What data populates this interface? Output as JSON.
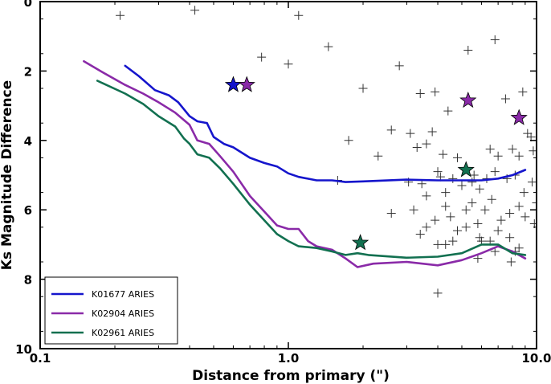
{
  "chart_data": {
    "type": "line",
    "title": "",
    "xlabel": "Distance from primary (\")",
    "ylabel": "Ks Magnitude Difference",
    "xscale": "log",
    "xlim": [
      0.1,
      10.0
    ],
    "ylim": [
      10,
      0
    ],
    "y_inverted": true,
    "grid": false,
    "legend_position": "bottom-left",
    "x_tick_labels": [
      "0.1",
      "1.0",
      "10.0"
    ],
    "x_tick_values": [
      0.1,
      1.0,
      10.0
    ],
    "y_tick_labels": [
      "0",
      "2",
      "4",
      "6",
      "8",
      "10"
    ],
    "y_tick_values": [
      0,
      2,
      4,
      6,
      8,
      10
    ],
    "series": [
      {
        "name": "K01677 ARIES",
        "color": "#1515cc",
        "x": [
          0.22,
          0.25,
          0.29,
          0.33,
          0.36,
          0.4,
          0.43,
          0.47,
          0.5,
          0.55,
          0.6,
          0.7,
          0.8,
          0.9,
          1.0,
          1.1,
          1.3,
          1.5,
          1.7,
          2.0,
          3.0,
          4.0,
          5.0,
          6.0,
          7.0,
          8.0,
          9.0
        ],
        "y": [
          1.85,
          2.15,
          2.55,
          2.7,
          2.9,
          3.3,
          3.45,
          3.5,
          3.9,
          4.1,
          4.2,
          4.5,
          4.65,
          4.75,
          4.95,
          5.05,
          5.15,
          5.15,
          5.2,
          5.18,
          5.13,
          5.15,
          5.15,
          5.15,
          5.1,
          5.0,
          4.85
        ]
      },
      {
        "name": "K02904 ARIES",
        "color": "#8a2aa8",
        "x": [
          0.15,
          0.18,
          0.22,
          0.26,
          0.3,
          0.35,
          0.4,
          0.43,
          0.48,
          0.53,
          0.6,
          0.7,
          0.8,
          0.9,
          1.0,
          1.1,
          1.2,
          1.3,
          1.5,
          1.7,
          1.9,
          2.2,
          3.0,
          4.0,
          5.0,
          6.0,
          7.0,
          8.0,
          9.0
        ],
        "y": [
          1.72,
          2.05,
          2.4,
          2.65,
          2.9,
          3.2,
          3.55,
          4.0,
          4.1,
          4.45,
          4.9,
          5.6,
          6.05,
          6.45,
          6.55,
          6.55,
          6.9,
          7.05,
          7.15,
          7.4,
          7.65,
          7.55,
          7.5,
          7.6,
          7.45,
          7.25,
          7.05,
          7.2,
          7.4
        ]
      },
      {
        "name": "K02961 ARIES",
        "color": "#127050",
        "x": [
          0.17,
          0.22,
          0.26,
          0.3,
          0.35,
          0.38,
          0.4,
          0.43,
          0.48,
          0.53,
          0.6,
          0.7,
          0.8,
          0.9,
          1.0,
          1.1,
          1.3,
          1.5,
          1.7,
          1.9,
          2.1,
          3.0,
          4.0,
          5.0,
          6.0,
          7.0,
          8.0,
          9.0
        ],
        "y": [
          2.28,
          2.65,
          2.95,
          3.3,
          3.6,
          3.95,
          4.1,
          4.4,
          4.5,
          4.8,
          5.25,
          5.85,
          6.3,
          6.7,
          6.9,
          7.05,
          7.1,
          7.2,
          7.3,
          7.25,
          7.3,
          7.38,
          7.35,
          7.25,
          7.0,
          7.0,
          7.25,
          7.3
        ]
      }
    ],
    "stars": [
      {
        "series": "K01677 ARIES",
        "x": 0.6,
        "y": 2.4,
        "color": "#1515cc"
      },
      {
        "series": "K02904 ARIES",
        "x": 0.68,
        "y": 2.4,
        "color": "#8a2aa8"
      },
      {
        "series": "K02904 ARIES",
        "x": 5.3,
        "y": 2.85,
        "color": "#8a2aa8"
      },
      {
        "series": "K02904 ARIES",
        "x": 8.5,
        "y": 3.35,
        "color": "#8a2aa8"
      },
      {
        "series": "K02961 ARIES",
        "x": 1.95,
        "y": 6.95,
        "color": "#127050"
      },
      {
        "series": "K02961 ARIES",
        "x": 5.2,
        "y": 4.85,
        "color": "#127050"
      }
    ],
    "crosses": [
      [
        0.21,
        0.4
      ],
      [
        0.42,
        0.25
      ],
      [
        1.1,
        0.4
      ],
      [
        0.78,
        1.6
      ],
      [
        1.0,
        1.8
      ],
      [
        1.45,
        1.3
      ],
      [
        2.8,
        1.85
      ],
      [
        5.3,
        1.4
      ],
      [
        6.8,
        1.1
      ],
      [
        2.0,
        2.5
      ],
      [
        3.4,
        2.65
      ],
      [
        3.9,
        2.6
      ],
      [
        7.5,
        2.8
      ],
      [
        8.8,
        2.6
      ],
      [
        4.4,
        3.15
      ],
      [
        9.2,
        3.8
      ],
      [
        9.5,
        3.9
      ],
      [
        1.75,
        4.0
      ],
      [
        2.3,
        4.45
      ],
      [
        3.1,
        3.8
      ],
      [
        3.3,
        4.2
      ],
      [
        3.6,
        4.1
      ],
      [
        2.6,
        3.7
      ],
      [
        3.8,
        3.75
      ],
      [
        4.2,
        4.4
      ],
      [
        4.8,
        4.5
      ],
      [
        6.5,
        4.25
      ],
      [
        7.0,
        4.45
      ],
      [
        8.0,
        4.25
      ],
      [
        8.5,
        4.45
      ],
      [
        9.7,
        4.3
      ],
      [
        1.58,
        5.15
      ],
      [
        3.05,
        5.2
      ],
      [
        3.45,
        5.25
      ],
      [
        3.6,
        5.6
      ],
      [
        4.0,
        4.9
      ],
      [
        4.1,
        5.05
      ],
      [
        4.3,
        5.5
      ],
      [
        4.6,
        5.1
      ],
      [
        5.0,
        5.3
      ],
      [
        5.5,
        5.2
      ],
      [
        5.6,
        5.0
      ],
      [
        5.9,
        5.4
      ],
      [
        6.3,
        5.1
      ],
      [
        6.8,
        4.9
      ],
      [
        7.6,
        5.1
      ],
      [
        8.2,
        5.0
      ],
      [
        8.9,
        5.5
      ],
      [
        9.6,
        5.2
      ],
      [
        10.0,
        5.8
      ],
      [
        2.6,
        6.1
      ],
      [
        3.2,
        6.0
      ],
      [
        3.6,
        6.5
      ],
      [
        3.9,
        6.3
      ],
      [
        4.3,
        5.9
      ],
      [
        4.5,
        6.2
      ],
      [
        4.8,
        6.6
      ],
      [
        5.2,
        6.0
      ],
      [
        5.5,
        5.8
      ],
      [
        5.8,
        6.4
      ],
      [
        6.2,
        6.0
      ],
      [
        6.6,
        5.7
      ],
      [
        7.2,
        6.3
      ],
      [
        7.8,
        6.1
      ],
      [
        8.5,
        5.9
      ],
      [
        9.0,
        6.2
      ],
      [
        3.4,
        6.7
      ],
      [
        4.0,
        7.0
      ],
      [
        4.6,
        6.9
      ],
      [
        5.2,
        6.5
      ],
      [
        5.9,
        6.8
      ],
      [
        6.5,
        6.9
      ],
      [
        7.0,
        6.6
      ],
      [
        7.8,
        6.8
      ],
      [
        8.2,
        7.2
      ],
      [
        9.8,
        6.4
      ],
      [
        5.8,
        7.4
      ],
      [
        7.9,
        7.5
      ],
      [
        8.5,
        7.1
      ],
      [
        4.0,
        8.4
      ],
      [
        4.3,
        7.0
      ],
      [
        6.0,
        6.9
      ],
      [
        6.8,
        7.2
      ]
    ]
  }
}
